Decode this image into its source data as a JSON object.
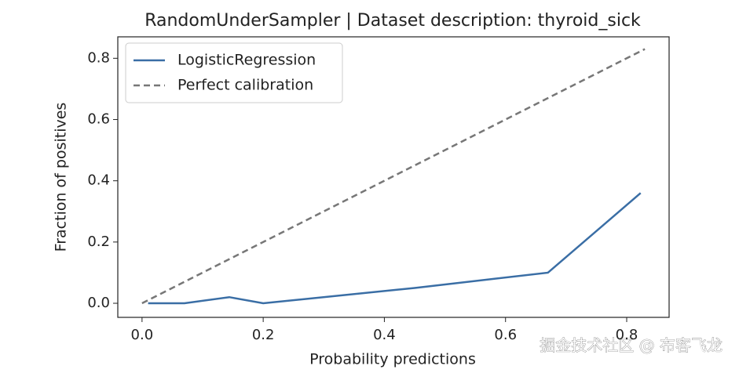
{
  "chart_data": {
    "type": "line",
    "title": "RandomUnderSampler | Dataset description: thyroid_sick",
    "xlabel": "Probability predictions",
    "ylabel": "Fraction of positives",
    "xlim": [
      -0.04,
      0.87
    ],
    "ylim": [
      -0.046,
      0.87
    ],
    "xticks": [
      {
        "value": 0,
        "label": "0.0"
      },
      {
        "value": 0.2,
        "label": "0.2"
      },
      {
        "value": 0.4,
        "label": "0.4"
      },
      {
        "value": 0.6,
        "label": "0.6"
      },
      {
        "value": 0.8,
        "label": "0.8"
      }
    ],
    "yticks": [
      {
        "value": 0,
        "label": "0.0"
      },
      {
        "value": 0.2,
        "label": "0.2"
      },
      {
        "value": 0.4,
        "label": "0.4"
      },
      {
        "value": 0.6,
        "label": "0.6"
      },
      {
        "value": 0.8,
        "label": "0.8"
      }
    ],
    "legend": "upper left",
    "series": [
      {
        "name": "LogisticRegression",
        "color": "#3a6ea5",
        "style": "solid",
        "x": [
          0.01,
          0.07,
          0.144,
          0.2,
          0.45,
          0.67,
          0.823
        ],
        "values": [
          0,
          0,
          0.02,
          0,
          0.05,
          0.1,
          0.36
        ]
      },
      {
        "name": "Perfect calibration",
        "color": "#777777",
        "style": "dashed",
        "x": [
          0,
          0.83
        ],
        "values": [
          0,
          0.83
        ]
      }
    ],
    "watermark": "掘金技术社区 @ 布客飞龙"
  }
}
